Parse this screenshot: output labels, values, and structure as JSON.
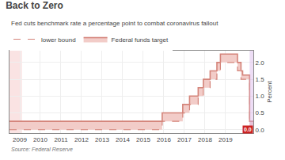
{
  "chart_data": {
    "type": "line",
    "title": "Back to Zero",
    "subtitle": "Fed cuts benchmark rate a percentage point to combat coronavirus fallout",
    "source": "Source: Federal Reserve",
    "ylabel": "Percent",
    "x": [
      2008.5,
      2015.92,
      2015.92,
      2016.92,
      2016.92,
      2017.25,
      2017.25,
      2017.67,
      2017.67,
      2017.92,
      2017.92,
      2018.25,
      2018.25,
      2018.58,
      2018.58,
      2018.75,
      2018.75,
      2019.0,
      2019.58,
      2019.58,
      2019.75,
      2019.75,
      2019.83,
      2019.83,
      2020.17,
      2020.17,
      2020.35
    ],
    "series": [
      {
        "name": "Federal funds target",
        "color": "#d4847a",
        "line_style": "solid",
        "values": [
          0.25,
          0.25,
          0.5,
          0.5,
          0.75,
          0.75,
          1.0,
          1.0,
          1.25,
          1.25,
          1.5,
          1.5,
          1.75,
          1.75,
          2.0,
          2.0,
          2.25,
          2.25,
          2.25,
          2.0,
          2.0,
          1.75,
          1.75,
          1.625,
          1.625,
          0.25,
          0.25
        ]
      },
      {
        "name": "lower bound",
        "color": "#d4847a",
        "line_style": "dashed",
        "values": [
          0.0,
          0.0,
          0.25,
          0.25,
          0.5,
          0.5,
          0.75,
          0.75,
          1.0,
          1.0,
          1.25,
          1.25,
          1.5,
          1.5,
          1.75,
          1.75,
          2.0,
          2.0,
          2.0,
          1.75,
          1.75,
          1.5,
          1.5,
          1.5,
          1.5,
          0.0,
          0.0
        ]
      }
    ],
    "fill": {
      "between": [
        "Federal funds target",
        "lower bound"
      ],
      "color": "#f2ccc8"
    },
    "shaded_regions": [
      {
        "x0": 2008.5,
        "x1": 2009.1,
        "color": "#e88080"
      },
      {
        "x0": 2020.17,
        "x1": 2020.35,
        "color": "#d8b4e8"
      }
    ],
    "annotations": [
      {
        "text": "0.0",
        "x": 2020.35,
        "y": 0.0,
        "color": "#cc2222"
      }
    ],
    "xlim": [
      2008.5,
      2020.35
    ],
    "ylim": [
      -0.1,
      2.35
    ],
    "xticks": [
      2009,
      2010,
      2011,
      2012,
      2013,
      2014,
      2015,
      2016,
      2017,
      2018,
      2019
    ],
    "yticks": [
      {
        "value": 0.0,
        "label": "0.0"
      },
      0.5,
      {
        "value": 1.0,
        "label": "1.0"
      },
      1.5,
      {
        "value": 2.0,
        "label": "2.0"
      }
    ],
    "grid": true,
    "legend": "top left"
  }
}
